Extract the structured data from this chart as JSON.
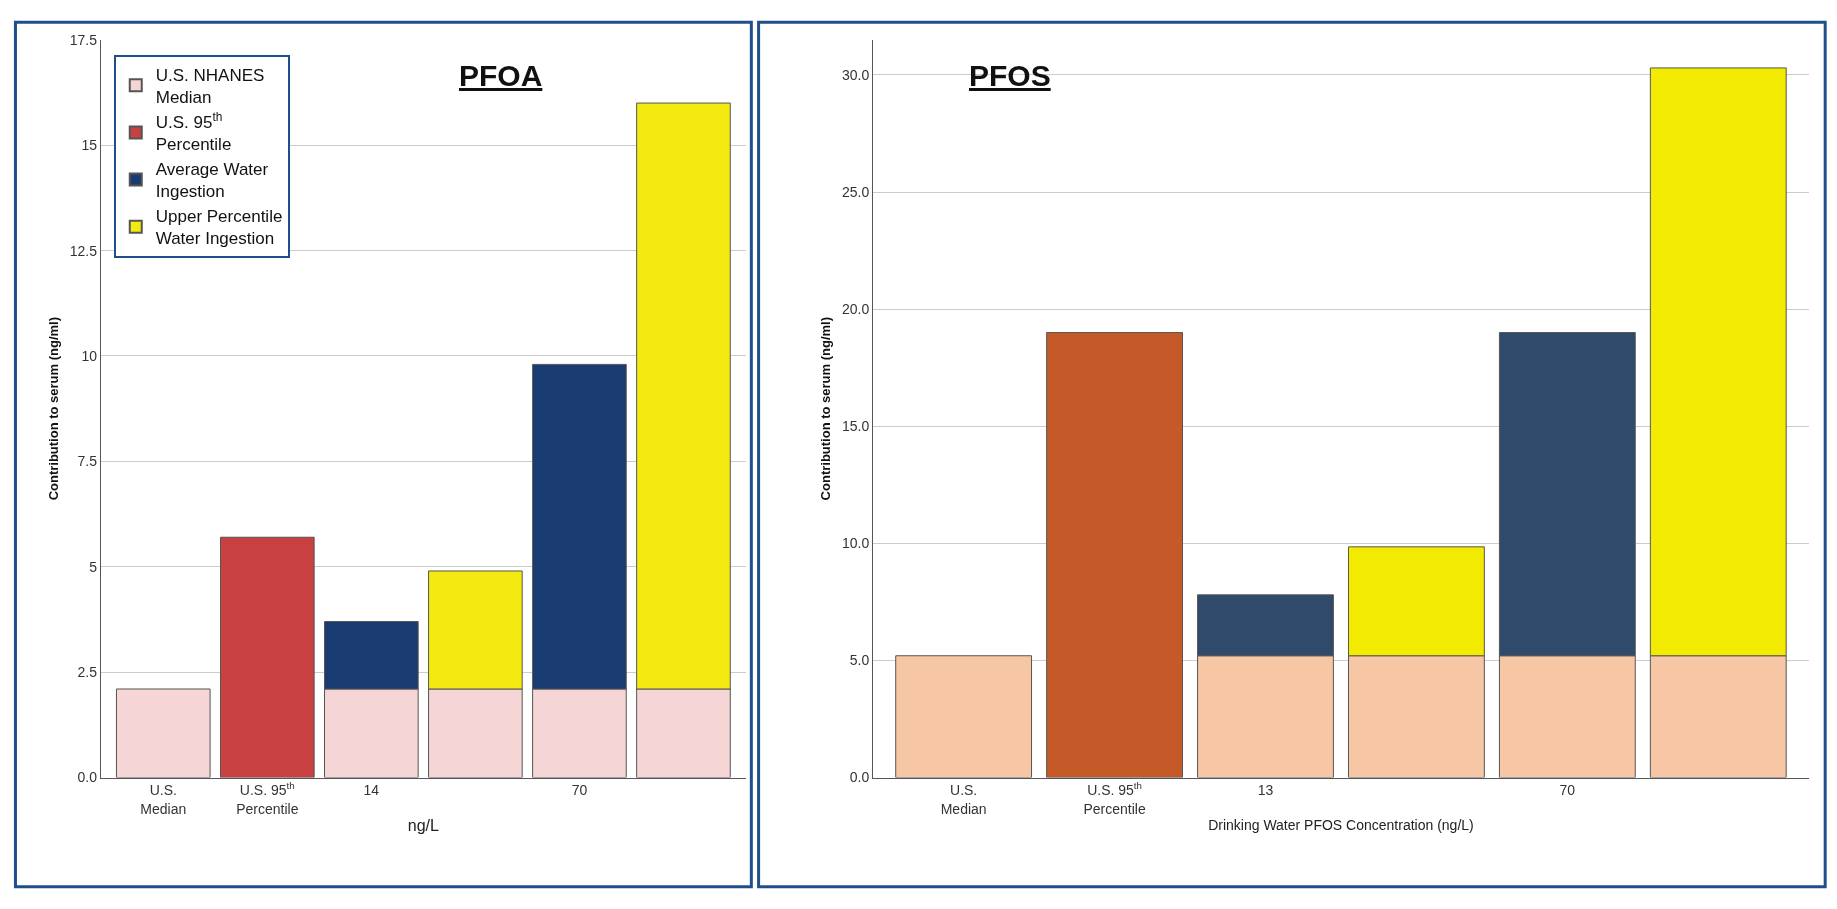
{
  "chart_data": [
    {
      "type": "bar",
      "title": "PFOA",
      "ylabel": "Contribution to serum (ng/ml)",
      "xlabel": "ng/L",
      "stacked": true,
      "grid": "y",
      "legend": "top left",
      "categories": [
        "U.S. Median",
        "U.S. 95$^{th}$ Percentile",
        "14",
        null,
        "70",
        null
      ],
      "ylim": [
        0,
        17.5
      ],
      "yticks": [
        {
          "value": 0,
          "label": "0.0"
        },
        2.5,
        5,
        7.5,
        10,
        12.5,
        15,
        17.5
      ],
      "series": [
        {
          "name": "U.S. NHANES Median",
          "color": "#f5d5d5",
          "values": [
            2.1,
            null,
            2.1,
            2.1,
            2.1,
            2.1
          ]
        },
        {
          "name": "U.S. 95$^{th}$ Percentile",
          "color": "#c94040",
          "values": [
            null,
            5.7,
            null,
            null,
            null,
            null
          ]
        },
        {
          "name": "Average Water Ingestion",
          "color": "#1a3a72",
          "values": [
            null,
            null,
            1.6,
            null,
            7.7,
            null
          ]
        },
        {
          "name": "Upper Percentile Water Ingestion",
          "color": "#f2ea10",
          "values": [
            null,
            null,
            null,
            2.8,
            null,
            13.9
          ]
        }
      ]
    },
    {
      "type": "bar",
      "title": "PFOS",
      "ylabel": "Contribution to serum (ng/ml)",
      "xlabel": "Drinking Water PFOS Concentration (ng/L)",
      "stacked": true,
      "grid": "y",
      "categories": [
        "U.S. Median",
        "U.S. 95$^{th}$ Percentile",
        "13",
        null,
        "70",
        null
      ],
      "ylim": [
        0,
        31.5
      ],
      "yticks": [
        {
          "value": 0,
          "label": "0.0"
        },
        {
          "value": 5,
          "label": "5.0"
        },
        {
          "value": 10,
          "label": "10.0"
        },
        {
          "value": 15,
          "label": "15.0"
        },
        {
          "value": 20,
          "label": "20.0"
        },
        {
          "value": 25,
          "label": "25.0"
        },
        {
          "value": 30,
          "label": "30.0"
        }
      ],
      "series": [
        {
          "color": "#f7c6a5",
          "values": [
            5.2,
            null,
            5.2,
            5.2,
            5.2,
            5.2
          ]
        },
        {
          "color": "#c55a28",
          "values": [
            null,
            19.0,
            null,
            null,
            null,
            null
          ]
        },
        {
          "color": "#2f4a6b",
          "values": [
            null,
            null,
            2.6,
            null,
            13.8,
            null
          ]
        },
        {
          "color": "#f2ea00",
          "values": [
            null,
            null,
            null,
            4.65,
            null,
            25.1
          ]
        }
      ]
    }
  ]
}
